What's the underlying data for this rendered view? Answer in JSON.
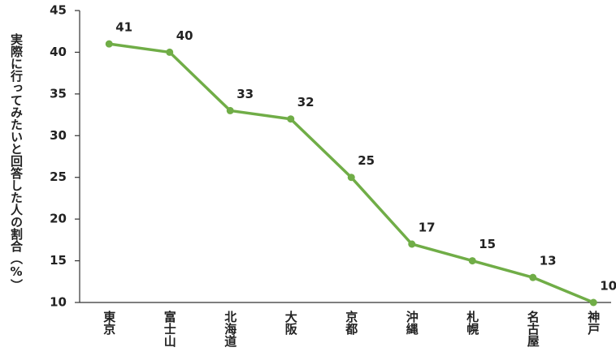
{
  "chart_data": {
    "type": "line",
    "y_label": "実際に行ってみたいと回答した人の割合（%）",
    "categories": [
      "東京",
      "富士山",
      "北海道",
      "大阪",
      "京都",
      "沖縄",
      "札幌",
      "名古屋",
      "神戸"
    ],
    "values": [
      41,
      40,
      33,
      32,
      25,
      17,
      15,
      13,
      10
    ],
    "color": "#70ad47",
    "ylim": [
      10,
      45
    ],
    "yticks": [
      10,
      15,
      20,
      25,
      30,
      35,
      40,
      45
    ]
  }
}
